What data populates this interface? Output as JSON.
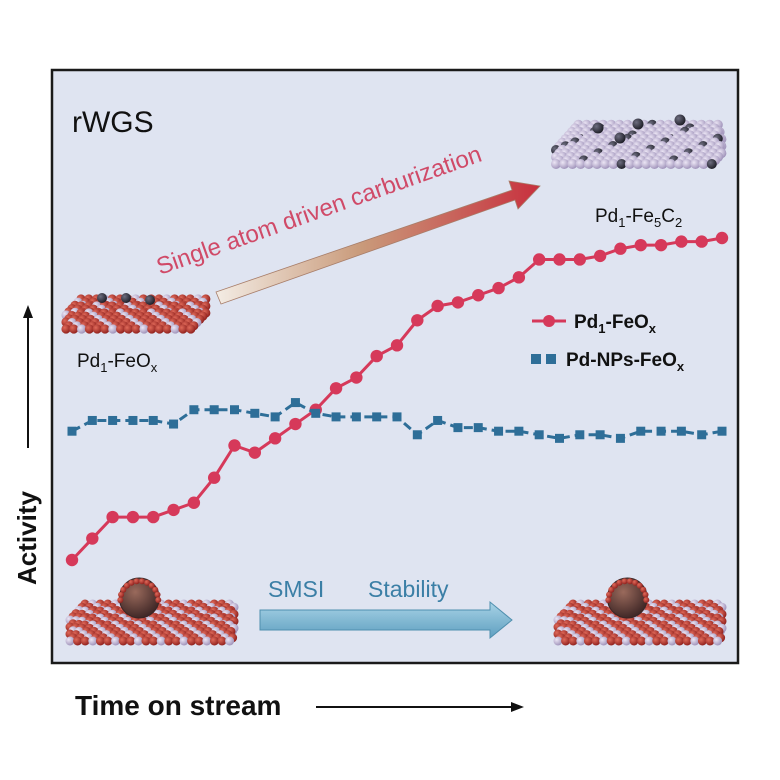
{
  "reaction_label": "rWGS",
  "carburization_label": "Single atom driven carburization",
  "top_catalyst_label": {
    "base": "Pd",
    "sub1": "1",
    "mid": "-Fe",
    "sub2": "5",
    "mid2": "C",
    "sub3": "2"
  },
  "left_catalyst_label": {
    "base": "Pd",
    "sub1": "1",
    "mid": "-FeO",
    "sub2": "x"
  },
  "smsi_label": "SMSI",
  "stability_label": "Stability",
  "colors": {
    "pd1_series": "#d6395a",
    "pdnps_series": "#2e6e98",
    "plot_bg": "#dfe4f1",
    "smsi_arrow": "#7fb8d4",
    "support_red": "#b5322d",
    "support_lilac": "#c9bfdc",
    "particle_dark": "#3a2a2a"
  },
  "chart_data": {
    "type": "line",
    "title": "",
    "xlabel": "Time on stream",
    "ylabel": "Activity",
    "xlim": [
      0,
      33
    ],
    "ylim": [
      0,
      100
    ],
    "axis_ticks": false,
    "grid": false,
    "legend_position": "right-middle",
    "x": [
      0,
      1,
      2,
      3,
      4,
      5,
      6,
      7,
      8,
      9,
      10,
      11,
      12,
      13,
      14,
      15,
      16,
      17,
      18,
      19,
      20,
      21,
      22,
      23,
      24,
      25,
      26,
      27,
      28,
      29,
      30,
      31,
      32
    ],
    "series": [
      {
        "name": {
          "base": "Pd",
          "sub1": "1",
          "mid": "-FeO",
          "sub2": "x"
        },
        "marker": "circle",
        "color": "#d6395a",
        "values": [
          4,
          10,
          16,
          16,
          16,
          18,
          20,
          27,
          36,
          34,
          38,
          42,
          46,
          52,
          55,
          61,
          64,
          71,
          75,
          76,
          78,
          80,
          83,
          88,
          88,
          88,
          89,
          91,
          92,
          92,
          93,
          93,
          94
        ]
      },
      {
        "name": {
          "base": "Pd-NPs-FeO",
          "sub1": "x"
        },
        "marker": "square",
        "color": "#2e6e98",
        "values": [
          40,
          43,
          43,
          43,
          43,
          42,
          46,
          46,
          46,
          45,
          44,
          48,
          45,
          44,
          44,
          44,
          44,
          39,
          43,
          41,
          41,
          40,
          40,
          39,
          38,
          39,
          39,
          38,
          40,
          40,
          40,
          39,
          40
        ]
      }
    ]
  }
}
